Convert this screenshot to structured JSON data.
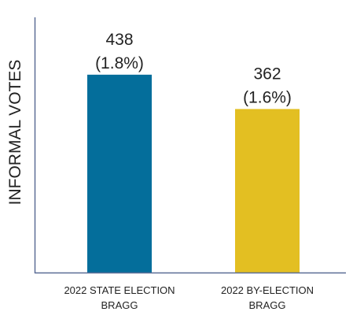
{
  "chart_data": {
    "type": "bar",
    "ylabel": "INFORMAL VOTES",
    "categories": [
      {
        "line1": "2022 STATE ELECTION",
        "line2": "BRAGG"
      },
      {
        "line1": "2022 BY-ELECTION",
        "line2": "BRAGG"
      }
    ],
    "values": [
      438,
      362
    ],
    "value_labels": [
      {
        "count": "438",
        "percent": "(1.8%)"
      },
      {
        "count": "362",
        "percent": "(1.6%)"
      }
    ],
    "colors": [
      "#046e9b",
      "#e3bf22"
    ],
    "axis_color": "#5b6d96",
    "ylim": [
      0,
      565
    ],
    "grid": false,
    "legend": "none"
  }
}
